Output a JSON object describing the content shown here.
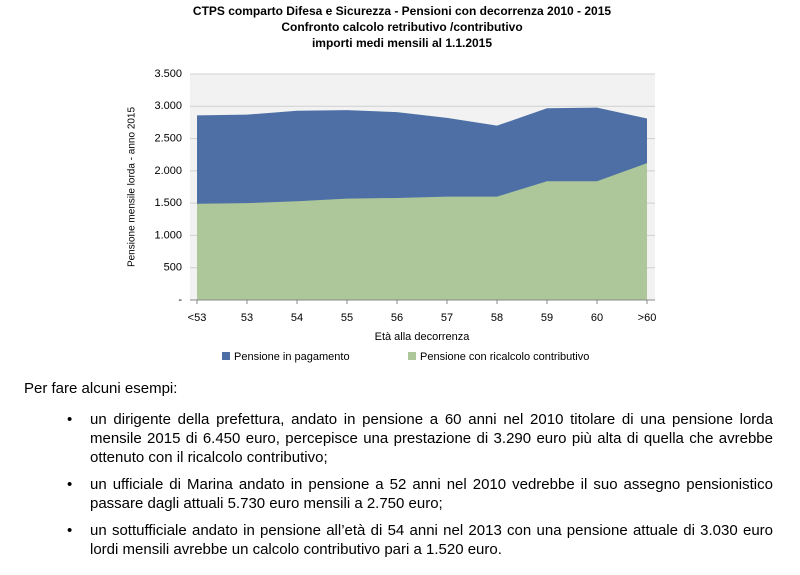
{
  "chart_data": {
    "type": "area",
    "title": "CTPS comparto Difesa e Sicurezza - Pensioni con decorrenza 2010 - 2015",
    "subtitle": "Confronto  calcolo retributivo /contributivo",
    "subtitle2": "importi medi mensili al 1.1.2015",
    "x_label": "Età alla decorrenza",
    "y_label": "Pensione mensile lorda - anno 2015",
    "categories": [
      "<53",
      "53",
      "54",
      "55",
      "56",
      "57",
      "58",
      "59",
      "60",
      ">60"
    ],
    "series": [
      {
        "name": "Pensione in pagamento",
        "color": "#4d6fa6",
        "values": [
          2860,
          2870,
          2930,
          2940,
          2910,
          2820,
          2700,
          2970,
          2980,
          2810
        ]
      },
      {
        "name": "Pensione con ricalcolo contributivo",
        "color": "#adc79a",
        "values": [
          1490,
          1500,
          1530,
          1570,
          1580,
          1600,
          1600,
          1840,
          1840,
          2120
        ]
      }
    ],
    "ylim": [
      0,
      3500
    ],
    "yticks": [
      {
        "value": 0,
        "label": "-"
      },
      500,
      {
        "value": 1000,
        "label": "1.000"
      },
      {
        "value": 1500,
        "label": "1.500"
      },
      {
        "value": 2000,
        "label": "2.000"
      },
      {
        "value": 2500,
        "label": "2.500"
      },
      {
        "value": 3000,
        "label": "3.000"
      },
      {
        "value": 3500,
        "label": "3.500"
      }
    ],
    "grid": true,
    "legend": "bottom"
  },
  "document": {
    "intro": "Per fare alcuni esempi:",
    "bullets": [
      "un dirigente della prefettura, andato in pensione a 60 anni nel 2010 titolare di una pensione lorda mensile 2015 di 6.450  euro, percepisce una prestazione di 3.290 euro più alta di quella che avrebbe ottenuto con il ricalcolo contributivo;",
      "un ufficiale di Marina andato in pensione a 52 anni nel 2010 vedrebbe il suo assegno pensionistico passare dagli attuali 5.730 euro mensili a 2.750 euro;",
      "un sottufficiale andato in pensione all’età di 54 anni nel 2013 con una pensione attuale di  3.030 euro lordi mensili avrebbe un calcolo contributivo pari a 1.520 euro."
    ]
  }
}
